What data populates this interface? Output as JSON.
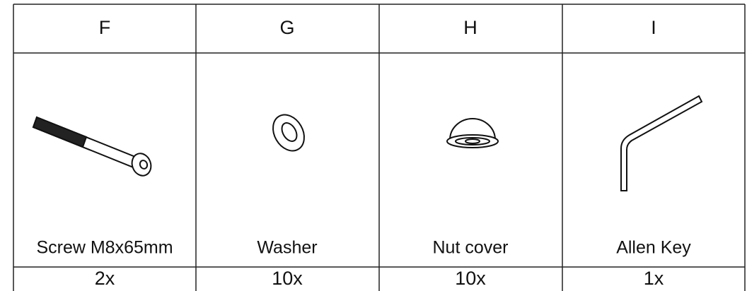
{
  "table": {
    "header": [
      "F",
      "G",
      "H",
      "I"
    ],
    "names": [
      "Screw M8x65mm",
      "Washer",
      "Nut cover",
      "Allen Key"
    ],
    "quantities": [
      "2x",
      "10x",
      "10x",
      "1x"
    ]
  }
}
